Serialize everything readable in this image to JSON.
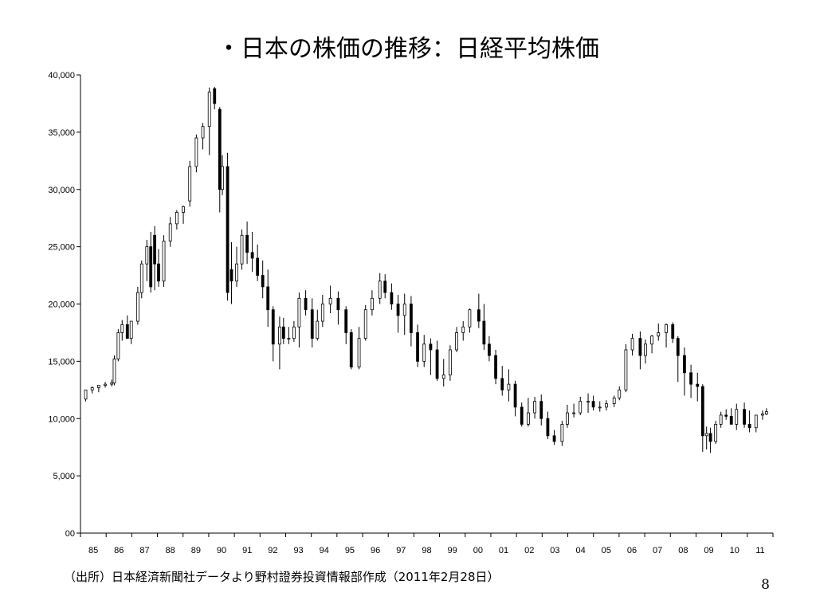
{
  "slide": {
    "title": "・日本の株価の推移：日経平均株価",
    "source": "（出所）日本経済新聞社データより野村證券投資情報部作成（2011年2月28日）",
    "page_number": "8"
  },
  "chart_data": {
    "type": "candlestick",
    "title": "・日本の株価の推移：日経平均株価",
    "xlabel": "",
    "ylabel": "",
    "xlim": [
      1984.8,
      2011.4
    ],
    "ylim": [
      0,
      40000
    ],
    "yticks": [
      0,
      5000,
      10000,
      15000,
      20000,
      25000,
      30000,
      35000,
      40000
    ],
    "ytick_labels": [
      "00",
      "5,000",
      "10,000",
      "15,000",
      "20,000",
      "25,000",
      "30,000",
      "35,000",
      "40,000"
    ],
    "xtick_labels": [
      "85",
      "86",
      "87",
      "88",
      "89",
      "90",
      "91",
      "92",
      "93",
      "94",
      "95",
      "96",
      "97",
      "98",
      "99",
      "00",
      "01",
      "02",
      "03",
      "04",
      "05",
      "06",
      "07",
      "08",
      "09",
      "10",
      "11"
    ],
    "grid": false,
    "legend": "none",
    "colors": {
      "up": "#ffffff",
      "down": "#000000",
      "line": "#000000"
    },
    "series": [
      {
        "x": [
          1985.0,
          1985.25,
          1985.5,
          1985.75,
          1986.0,
          1986.1,
          1986.25,
          1986.4,
          1986.6,
          1986.75,
          1987.0,
          1987.15,
          1987.35,
          1987.5,
          1987.65,
          1987.8,
          1988.0,
          1988.25,
          1988.5,
          1988.75,
          1989.0,
          1989.25,
          1989.5,
          1989.75,
          1989.95,
          1990.15,
          1990.25,
          1990.45,
          1990.6,
          1990.8,
          1991.0,
          1991.2,
          1991.4,
          1991.6,
          1991.8,
          1992.0,
          1992.2,
          1992.45,
          1992.6,
          1992.8,
          1993.0,
          1993.2,
          1993.45,
          1993.7,
          1993.9,
          1994.1,
          1994.4,
          1994.7,
          1995.0,
          1995.2,
          1995.5,
          1995.75,
          1996.0,
          1996.3,
          1996.5,
          1996.75,
          1997.0,
          1997.25,
          1997.5,
          1997.75,
          1998.0,
          1998.25,
          1998.5,
          1998.75,
          1999.0,
          1999.25,
          1999.5,
          1999.75,
          2000.1,
          2000.3,
          2000.5,
          2000.75,
          2001.0,
          2001.25,
          2001.5,
          2001.75,
          2002.0,
          2002.25,
          2002.5,
          2002.75,
          2003.0,
          2003.3,
          2003.5,
          2003.75,
          2004.0,
          2004.3,
          2004.5,
          2004.75,
          2005.0,
          2005.3,
          2005.5,
          2005.75,
          2006.0,
          2006.3,
          2006.5,
          2006.75,
          2007.0,
          2007.3,
          2007.55,
          2007.75,
          2008.0,
          2008.25,
          2008.5,
          2008.7,
          2008.85,
          2009.0,
          2009.2,
          2009.4,
          2009.6,
          2009.8,
          2010.0,
          2010.3,
          2010.5,
          2010.75,
          2011.0,
          2011.15
        ],
        "open": [
          11700,
          12500,
          12700,
          12900,
          13000,
          13100,
          15200,
          17500,
          18200,
          17000,
          18500,
          21000,
          23500,
          25000,
          26000,
          23500,
          22000,
          25500,
          27000,
          28000,
          29000,
          32000,
          34500,
          35500,
          38800,
          37000,
          30000,
          32000,
          23000,
          22000,
          23500,
          26000,
          24500,
          24000,
          22500,
          21500,
          19500,
          16500,
          18000,
          17000,
          17000,
          18000,
          20500,
          19500,
          17000,
          18500,
          20000,
          20500,
          19500,
          17500,
          14500,
          17000,
          19500,
          20500,
          22000,
          21000,
          20000,
          19000,
          20000,
          17500,
          15000,
          16500,
          16000,
          13500,
          13800,
          16000,
          17500,
          18000,
          19500,
          18500,
          16500,
          15500,
          13500,
          12500,
          13000,
          11000,
          9500,
          10500,
          11500,
          10000,
          8500,
          8000,
          9500,
          10500,
          10500,
          11500,
          11500,
          11000,
          11000,
          11300,
          11800,
          12500,
          16000,
          17000,
          15500,
          16500,
          17200,
          17500,
          18200,
          17000,
          15500,
          14000,
          13000,
          12800,
          8500,
          8700,
          8000,
          9500,
          10300,
          10200,
          9500,
          10800,
          9500,
          9200,
          10300,
          10400
        ],
        "high": [
          12200,
          12800,
          12900,
          13200,
          13400,
          15500,
          17800,
          18600,
          19000,
          18500,
          21500,
          23800,
          25600,
          26300,
          26800,
          24800,
          26000,
          27600,
          28200,
          28600,
          32500,
          34800,
          35800,
          38900,
          38960,
          37200,
          33000,
          33200,
          25400,
          25000,
          26500,
          27200,
          26300,
          25200,
          23800,
          23000,
          19800,
          18900,
          18800,
          18000,
          18500,
          21000,
          21200,
          20500,
          19500,
          20800,
          21600,
          21100,
          19800,
          17800,
          18000,
          19900,
          21200,
          22700,
          22600,
          21800,
          20800,
          20900,
          20700,
          18200,
          17300,
          17000,
          16800,
          15200,
          16400,
          18000,
          18500,
          19600,
          20900,
          20000,
          17200,
          16000,
          14600,
          14300,
          13300,
          11400,
          11800,
          11900,
          12100,
          10600,
          9000,
          9800,
          11200,
          11300,
          11900,
          12200,
          12000,
          11500,
          11600,
          12000,
          12800,
          16500,
          17400,
          17600,
          16900,
          17300,
          18300,
          18300,
          18400,
          17200,
          16200,
          14700,
          14000,
          13000,
          9300,
          9200,
          9800,
          10600,
          10800,
          10900,
          11300,
          11400,
          10700,
          10000,
          10700,
          10900
        ],
        "low": [
          11500,
          12200,
          12300,
          12700,
          12800,
          12900,
          15000,
          16800,
          17000,
          16500,
          18200,
          20500,
          22000,
          21000,
          21200,
          21500,
          21500,
          25000,
          26500,
          27000,
          28500,
          31500,
          33500,
          33000,
          37000,
          28000,
          29500,
          20300,
          20000,
          21500,
          23000,
          23500,
          22800,
          22000,
          20500,
          18000,
          15000,
          14300,
          16500,
          16500,
          16700,
          16200,
          19000,
          16200,
          16800,
          18000,
          19200,
          18200,
          16500,
          14300,
          14300,
          16800,
          19000,
          20000,
          20500,
          19500,
          17500,
          17300,
          16300,
          14500,
          14500,
          13800,
          13300,
          12800,
          13300,
          15800,
          16800,
          17500,
          17900,
          16000,
          15000,
          13000,
          12000,
          11500,
          10200,
          9300,
          9300,
          10000,
          9400,
          8200,
          7700,
          7600,
          9200,
          10100,
          10300,
          10500,
          10700,
          10600,
          10700,
          11000,
          11600,
          12300,
          15500,
          14300,
          14800,
          15700,
          16800,
          16200,
          16600,
          13200,
          12000,
          11800,
          11500,
          7100,
          7300,
          7000,
          7800,
          9200,
          9900,
          9600,
          9000,
          9200,
          8800,
          8800,
          9900,
          10300
        ],
        "close": [
          12500,
          12700,
          12900,
          13000,
          13100,
          15200,
          17500,
          18200,
          17000,
          18500,
          21000,
          23500,
          25000,
          21500,
          23500,
          22000,
          25500,
          27000,
          28000,
          28500,
          32000,
          34500,
          35500,
          38500,
          37500,
          30000,
          32000,
          21000,
          22000,
          23500,
          26000,
          24500,
          24000,
          22500,
          21500,
          19500,
          16500,
          18000,
          17000,
          17000,
          18000,
          20500,
          19500,
          17000,
          18500,
          20000,
          20500,
          19500,
          17500,
          14500,
          17000,
          19500,
          20500,
          22000,
          21000,
          20000,
          19000,
          20000,
          17500,
          15000,
          16500,
          16000,
          13500,
          13800,
          16000,
          17500,
          18000,
          19500,
          18500,
          16500,
          15500,
          13500,
          12500,
          13000,
          11000,
          9500,
          10500,
          11500,
          10000,
          8500,
          8000,
          9500,
          10500,
          10500,
          11500,
          11500,
          11000,
          11000,
          11300,
          11800,
          12500,
          16000,
          17000,
          15500,
          16500,
          17200,
          17500,
          18200,
          17000,
          15500,
          14000,
          13000,
          12800,
          8500,
          8700,
          8000,
          9500,
          10300,
          10200,
          9500,
          10800,
          9500,
          9200,
          10300,
          10400,
          10600
        ]
      }
    ]
  }
}
